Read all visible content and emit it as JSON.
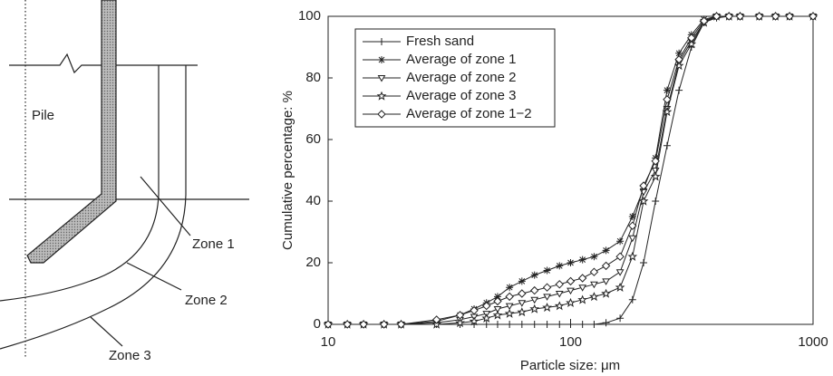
{
  "diagram": {
    "labels": [
      "Pile",
      "Zone 1",
      "Zone 2",
      "Zone 3"
    ]
  },
  "chart_data": {
    "type": "line",
    "xlabel": "Particle size: μm",
    "ylabel": "Cumulative percentage: %",
    "xscale": "log",
    "xlim": [
      10,
      1000
    ],
    "xticks": [
      10,
      100,
      1000
    ],
    "ylim": [
      0,
      100
    ],
    "yticks": [
      0,
      20,
      40,
      60,
      80,
      100
    ],
    "grid": false,
    "legend": "upper left",
    "x": [
      10,
      12,
      14,
      17,
      20,
      28,
      35,
      40,
      45,
      50,
      56,
      63,
      71,
      80,
      90,
      100,
      112,
      125,
      140,
      160,
      180,
      200,
      224,
      250,
      280,
      315,
      355,
      400,
      450,
      500,
      600,
      700,
      800,
      1000
    ],
    "series": [
      {
        "name": "Fresh sand",
        "color": "#222222",
        "marker": "plus",
        "values": [
          0,
          0,
          0,
          0,
          0,
          0,
          0,
          0,
          0,
          0,
          0,
          0,
          0,
          0,
          0,
          0,
          0,
          0,
          0.5,
          2,
          8,
          20,
          40,
          58,
          76,
          90,
          98,
          99.5,
          100,
          100,
          100,
          100,
          100,
          100
        ]
      },
      {
        "name": "Average of zone 1",
        "color": "#222222",
        "marker": "asterisk",
        "values": [
          0,
          0,
          0,
          0,
          0,
          1,
          3,
          5,
          7,
          9,
          12,
          14,
          16,
          17.5,
          19,
          20,
          21,
          22,
          24,
          27,
          35,
          44,
          54,
          76,
          88,
          94,
          99,
          100,
          100,
          100,
          100,
          100,
          100,
          100
        ]
      },
      {
        "name": "Average of zone 2",
        "color": "#222222",
        "marker": "triangle-down",
        "values": [
          0,
          0,
          0,
          0,
          0,
          0.5,
          1.5,
          2.5,
          3.5,
          5,
          6,
          7,
          8,
          9,
          10,
          11,
          12,
          13,
          14,
          17,
          28,
          43,
          50,
          70,
          85,
          92,
          98,
          100,
          100,
          100,
          100,
          100,
          100,
          100
        ]
      },
      {
        "name": "Average of zone 3",
        "color": "#222222",
        "marker": "star",
        "values": [
          0,
          0,
          0,
          0,
          0,
          0,
          0.5,
          1,
          2,
          3,
          3.5,
          4,
          5,
          5.5,
          6,
          7,
          8,
          9,
          10,
          12,
          22,
          40,
          48,
          69,
          84,
          91,
          98,
          100,
          100,
          100,
          100,
          100,
          100,
          100
        ]
      },
      {
        "name": "Average of zone 1−2",
        "color": "#222222",
        "marker": "diamond",
        "values": [
          0,
          0,
          0,
          0,
          0,
          1.5,
          3,
          4.5,
          6,
          7.5,
          9,
          10,
          11,
          12,
          13,
          14,
          15,
          17,
          19,
          22,
          32,
          45,
          53,
          73,
          86,
          93,
          98.5,
          100,
          100,
          100,
          100,
          100,
          100,
          100
        ]
      }
    ]
  }
}
